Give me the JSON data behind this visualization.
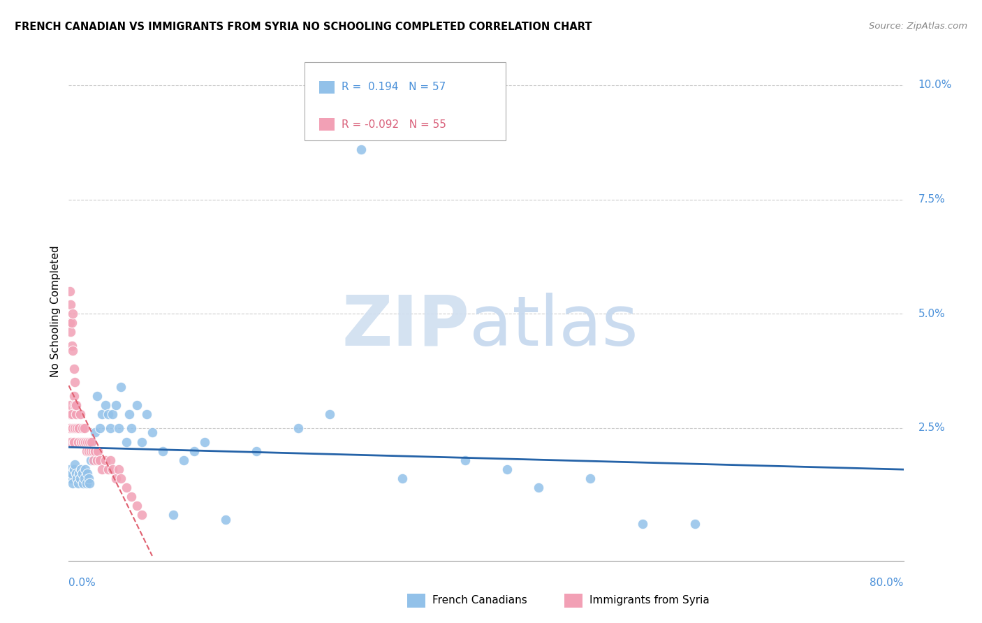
{
  "title": "FRENCH CANADIAN VS IMMIGRANTS FROM SYRIA NO SCHOOLING COMPLETED CORRELATION CHART",
  "source": "Source: ZipAtlas.com",
  "ylabel": "No Schooling Completed",
  "blue_color": "#92C1E9",
  "pink_color": "#F2A0B5",
  "line_blue": "#2563A8",
  "line_pink": "#E06070",
  "watermark_zip": "ZIP",
  "watermark_atlas": "atlas",
  "xmin": 0.0,
  "xmax": 0.8,
  "ymin": -0.004,
  "ymax": 0.105,
  "gridline_color": "#CCCCCC",
  "background_color": "#FFFFFF",
  "blue_color_legend": "#92C1E9",
  "pink_color_legend": "#F2A0B5",
  "blue_scatter_x": [
    0.001,
    0.002,
    0.003,
    0.004,
    0.005,
    0.006,
    0.007,
    0.008,
    0.009,
    0.01,
    0.011,
    0.012,
    0.013,
    0.014,
    0.015,
    0.016,
    0.017,
    0.018,
    0.019,
    0.02,
    0.021,
    0.022,
    0.025,
    0.027,
    0.03,
    0.032,
    0.035,
    0.038,
    0.04,
    0.042,
    0.045,
    0.048,
    0.05,
    0.055,
    0.058,
    0.06,
    0.065,
    0.07,
    0.075,
    0.08,
    0.09,
    0.1,
    0.11,
    0.12,
    0.13,
    0.15,
    0.18,
    0.22,
    0.25,
    0.28,
    0.32,
    0.38,
    0.42,
    0.45,
    0.5,
    0.55,
    0.6
  ],
  "blue_scatter_y": [
    0.016,
    0.014,
    0.015,
    0.013,
    0.016,
    0.017,
    0.015,
    0.014,
    0.013,
    0.015,
    0.014,
    0.016,
    0.015,
    0.013,
    0.014,
    0.016,
    0.013,
    0.015,
    0.014,
    0.013,
    0.018,
    0.022,
    0.024,
    0.032,
    0.025,
    0.028,
    0.03,
    0.028,
    0.025,
    0.028,
    0.03,
    0.025,
    0.034,
    0.022,
    0.028,
    0.025,
    0.03,
    0.022,
    0.028,
    0.024,
    0.02,
    0.006,
    0.018,
    0.02,
    0.022,
    0.005,
    0.02,
    0.025,
    0.028,
    0.086,
    0.014,
    0.018,
    0.016,
    0.012,
    0.014,
    0.004,
    0.004
  ],
  "pink_scatter_x": [
    0.001,
    0.001,
    0.002,
    0.002,
    0.003,
    0.004,
    0.005,
    0.006,
    0.007,
    0.008,
    0.009,
    0.01,
    0.011,
    0.012,
    0.013,
    0.014,
    0.015,
    0.016,
    0.017,
    0.018,
    0.019,
    0.02,
    0.021,
    0.022,
    0.023,
    0.024,
    0.025,
    0.027,
    0.028,
    0.03,
    0.032,
    0.035,
    0.038,
    0.04,
    0.042,
    0.045,
    0.048,
    0.05,
    0.055,
    0.06,
    0.065,
    0.07,
    0.001,
    0.001,
    0.002,
    0.002,
    0.003,
    0.003,
    0.004,
    0.004,
    0.005,
    0.005,
    0.006,
    0.006,
    0.007
  ],
  "pink_scatter_y": [
    0.028,
    0.025,
    0.03,
    0.022,
    0.028,
    0.025,
    0.022,
    0.025,
    0.028,
    0.025,
    0.022,
    0.025,
    0.028,
    0.022,
    0.025,
    0.022,
    0.025,
    0.022,
    0.02,
    0.022,
    0.02,
    0.022,
    0.02,
    0.022,
    0.02,
    0.018,
    0.02,
    0.018,
    0.02,
    0.018,
    0.016,
    0.018,
    0.016,
    0.018,
    0.016,
    0.014,
    0.016,
    0.014,
    0.012,
    0.01,
    0.008,
    0.006,
    0.055,
    0.048,
    0.052,
    0.046,
    0.048,
    0.043,
    0.05,
    0.042,
    0.038,
    0.032,
    0.035,
    0.03,
    0.03
  ]
}
